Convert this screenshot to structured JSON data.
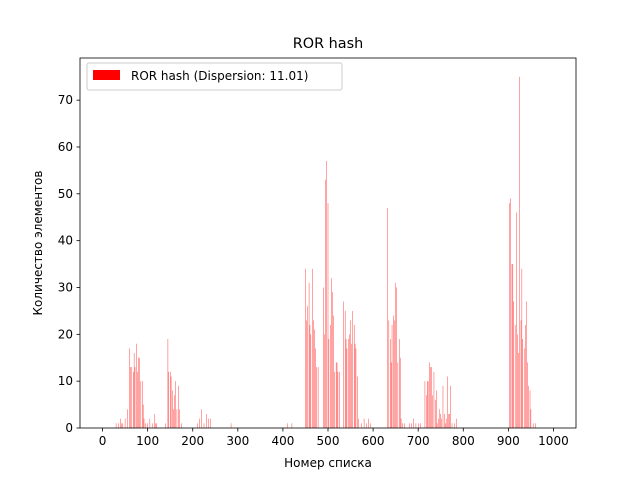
{
  "chart_data": {
    "type": "bar",
    "title": "ROR hash",
    "xlabel": "Номер списка",
    "ylabel": "Количество элементов",
    "xlim": [
      -50,
      1050
    ],
    "ylim": [
      0,
      79
    ],
    "xticks": [
      0,
      100,
      200,
      300,
      400,
      500,
      600,
      700,
      800,
      900,
      1000
    ],
    "yticks": [
      0,
      10,
      20,
      30,
      40,
      50,
      60,
      70
    ],
    "grid": false,
    "legend_position": "top-left",
    "series": [
      {
        "name": "ROR hash (Dispersion: 11.01)",
        "color": "#ff0000",
        "points": [
          [
            30,
            1
          ],
          [
            35,
            1
          ],
          [
            40,
            2
          ],
          [
            42,
            1
          ],
          [
            45,
            1
          ],
          [
            50,
            2
          ],
          [
            55,
            4
          ],
          [
            60,
            17
          ],
          [
            62,
            13
          ],
          [
            65,
            13
          ],
          [
            68,
            12
          ],
          [
            70,
            16
          ],
          [
            72,
            13
          ],
          [
            75,
            18
          ],
          [
            77,
            12
          ],
          [
            80,
            15
          ],
          [
            82,
            15
          ],
          [
            85,
            10
          ],
          [
            88,
            10
          ],
          [
            90,
            5
          ],
          [
            92,
            2
          ],
          [
            95,
            1
          ],
          [
            100,
            1
          ],
          [
            105,
            2
          ],
          [
            110,
            1
          ],
          [
            115,
            3
          ],
          [
            118,
            1
          ],
          [
            120,
            1
          ],
          [
            140,
            1
          ],
          [
            145,
            19
          ],
          [
            147,
            12
          ],
          [
            150,
            12
          ],
          [
            152,
            11
          ],
          [
            155,
            8
          ],
          [
            158,
            4
          ],
          [
            160,
            7
          ],
          [
            162,
            10
          ],
          [
            165,
            4
          ],
          [
            168,
            9
          ],
          [
            170,
            4
          ],
          [
            175,
            1
          ],
          [
            210,
            1
          ],
          [
            215,
            2
          ],
          [
            220,
            4
          ],
          [
            225,
            1
          ],
          [
            230,
            3
          ],
          [
            235,
            2
          ],
          [
            240,
            2
          ],
          [
            285,
            1
          ],
          [
            410,
            1
          ],
          [
            420,
            1
          ],
          [
            450,
            34
          ],
          [
            452,
            23
          ],
          [
            455,
            26
          ],
          [
            458,
            31
          ],
          [
            460,
            22
          ],
          [
            462,
            20
          ],
          [
            465,
            34
          ],
          [
            468,
            23
          ],
          [
            470,
            21
          ],
          [
            472,
            17
          ],
          [
            475,
            13
          ],
          [
            478,
            13
          ],
          [
            490,
            30
          ],
          [
            492,
            20
          ],
          [
            495,
            53
          ],
          [
            497,
            57
          ],
          [
            500,
            48
          ],
          [
            502,
            19
          ],
          [
            505,
            22
          ],
          [
            508,
            32
          ],
          [
            510,
            29
          ],
          [
            512,
            24
          ],
          [
            515,
            12
          ],
          [
            518,
            14
          ],
          [
            520,
            14
          ],
          [
            522,
            12
          ],
          [
            525,
            12
          ],
          [
            535,
            27
          ],
          [
            538,
            25
          ],
          [
            540,
            19
          ],
          [
            542,
            17
          ],
          [
            545,
            19
          ],
          [
            548,
            20
          ],
          [
            550,
            23
          ],
          [
            552,
            18
          ],
          [
            555,
            25
          ],
          [
            558,
            22
          ],
          [
            560,
            18
          ],
          [
            562,
            17
          ],
          [
            565,
            11
          ],
          [
            568,
            2
          ],
          [
            575,
            1
          ],
          [
            580,
            2
          ],
          [
            585,
            1
          ],
          [
            590,
            2
          ],
          [
            595,
            1
          ],
          [
            632,
            47
          ],
          [
            635,
            23
          ],
          [
            638,
            19
          ],
          [
            640,
            14
          ],
          [
            642,
            22
          ],
          [
            645,
            24
          ],
          [
            648,
            23
          ],
          [
            650,
            31
          ],
          [
            652,
            30
          ],
          [
            655,
            14
          ],
          [
            658,
            19
          ],
          [
            660,
            15
          ],
          [
            662,
            2
          ],
          [
            665,
            1
          ],
          [
            670,
            1
          ],
          [
            680,
            1
          ],
          [
            685,
            1
          ],
          [
            690,
            2
          ],
          [
            695,
            1
          ],
          [
            700,
            1
          ],
          [
            705,
            1
          ],
          [
            715,
            10
          ],
          [
            718,
            7
          ],
          [
            720,
            10
          ],
          [
            722,
            10
          ],
          [
            725,
            14
          ],
          [
            728,
            13
          ],
          [
            730,
            13
          ],
          [
            732,
            7
          ],
          [
            735,
            12
          ],
          [
            738,
            6
          ],
          [
            740,
            8
          ],
          [
            742,
            1
          ],
          [
            745,
            2
          ],
          [
            748,
            4
          ],
          [
            750,
            3
          ],
          [
            752,
            2
          ],
          [
            755,
            9
          ],
          [
            758,
            3
          ],
          [
            760,
            1
          ],
          [
            762,
            2
          ],
          [
            765,
            11
          ],
          [
            768,
            3
          ],
          [
            770,
            3
          ],
          [
            772,
            9
          ],
          [
            775,
            1
          ],
          [
            780,
            1
          ],
          [
            785,
            2
          ],
          [
            902,
            48
          ],
          [
            905,
            49
          ],
          [
            908,
            35
          ],
          [
            910,
            35
          ],
          [
            912,
            27
          ],
          [
            915,
            22
          ],
          [
            918,
            46
          ],
          [
            920,
            20
          ],
          [
            922,
            16
          ],
          [
            925,
            75
          ],
          [
            928,
            23
          ],
          [
            930,
            34
          ],
          [
            932,
            19
          ],
          [
            935,
            17
          ],
          [
            938,
            22
          ],
          [
            940,
            27
          ],
          [
            942,
            14
          ],
          [
            945,
            9
          ],
          [
            948,
            8
          ],
          [
            950,
            4
          ],
          [
            955,
            1
          ],
          [
            960,
            1
          ]
        ]
      }
    ]
  }
}
